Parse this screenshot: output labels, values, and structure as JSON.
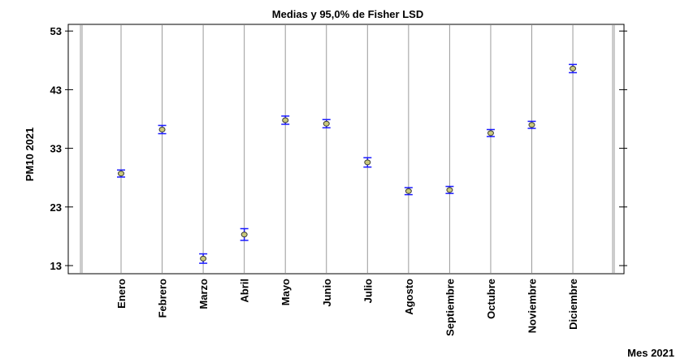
{
  "chart_data": {
    "type": "scatter",
    "title": "Medias y 95,0% de Fisher LSD",
    "xlabel": "Mes 2021",
    "ylabel": "PM10 2021",
    "ylim": [
      12,
      55
    ],
    "yticks": [
      13,
      23,
      33,
      43,
      53
    ],
    "categories": [
      "Enero",
      "Febrero",
      "Marzo",
      "Abril",
      "Mayo",
      "Junio",
      "Julio",
      "Agosto",
      "Septiembre",
      "Octubre",
      "Noviembre",
      "Diciembre"
    ],
    "means": [
      28.7,
      36.2,
      14.2,
      18.3,
      37.8,
      37.2,
      30.6,
      25.7,
      25.9,
      35.6,
      37.0,
      46.6
    ],
    "lower": [
      28.1,
      35.5,
      13.4,
      17.3,
      37.1,
      36.5,
      29.8,
      25.1,
      25.3,
      35.0,
      36.4,
      45.9
    ],
    "upper": [
      29.3,
      36.9,
      15.0,
      19.3,
      38.5,
      37.9,
      31.4,
      26.3,
      26.5,
      36.2,
      37.6,
      47.3
    ],
    "grid": "vertical",
    "colors": {
      "errorbar": "#1a1aff",
      "marker_fill": "#c9c97a",
      "marker_stroke": "#3a3a3a",
      "gridline": "#9a9a9a",
      "axis": "#000000"
    }
  }
}
